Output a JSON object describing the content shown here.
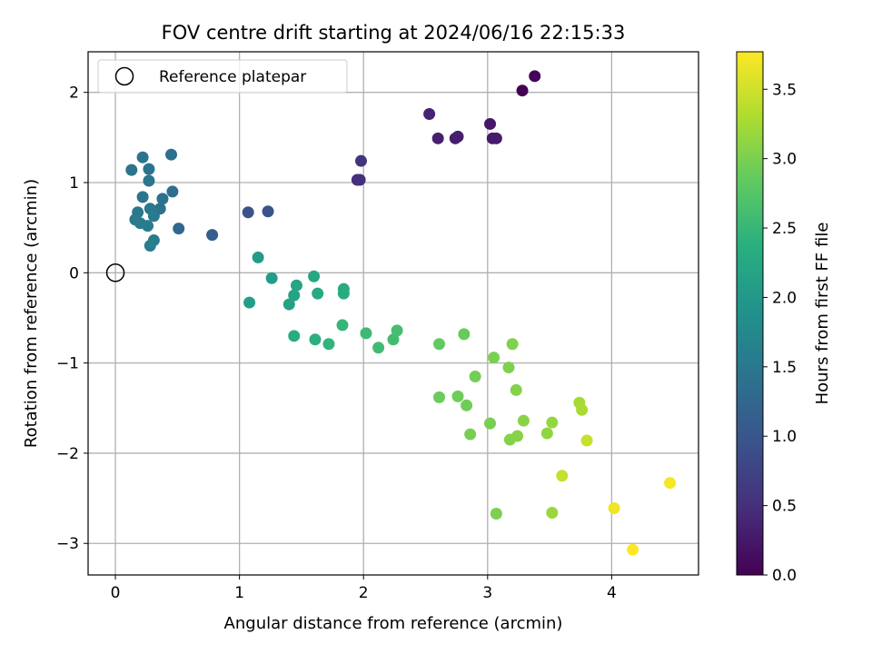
{
  "chart_data": {
    "type": "scatter",
    "title": "FOV centre drift starting at 2024/06/16 22:15:33",
    "xlabel": "Angular distance from reference (arcmin)",
    "ylabel": "Rotation from reference (arcmin)",
    "xlim": [
      -0.22,
      4.7
    ],
    "ylim": [
      -3.35,
      2.45
    ],
    "xticks": [
      0,
      1,
      2,
      3,
      4
    ],
    "xtick_labels": [
      "0",
      "1",
      "2",
      "3",
      "4"
    ],
    "yticks": [
      -3,
      -2,
      -1,
      0,
      1,
      2
    ],
    "ytick_labels": [
      "−3",
      "−2",
      "−1",
      "0",
      "1",
      "2"
    ],
    "grid": true,
    "legend": {
      "placement": "top-left",
      "entries": [
        "Reference platepar"
      ]
    },
    "reference_point": {
      "x": 0,
      "y": 0,
      "label": "Reference platepar"
    },
    "colorbar": {
      "label": "Hours from first FF file",
      "colormap": "viridis",
      "range": [
        0,
        3.77
      ],
      "ticks": [
        0.0,
        0.5,
        1.0,
        1.5,
        2.0,
        2.5,
        3.0,
        3.5
      ],
      "tick_labels": [
        "0.0",
        "0.5",
        "1.0",
        "1.5",
        "2.0",
        "2.5",
        "3.0",
        "3.5"
      ]
    },
    "points": [
      {
        "x": 3.28,
        "y": 2.02,
        "c": 0.0
      },
      {
        "x": 3.38,
        "y": 2.18,
        "c": 0.05
      },
      {
        "x": 3.02,
        "y": 1.65,
        "c": 0.25
      },
      {
        "x": 3.04,
        "y": 1.49,
        "c": 0.28
      },
      {
        "x": 3.07,
        "y": 1.49,
        "c": 0.3
      },
      {
        "x": 2.74,
        "y": 1.49,
        "c": 0.3
      },
      {
        "x": 2.76,
        "y": 1.51,
        "c": 0.32
      },
      {
        "x": 2.6,
        "y": 1.49,
        "c": 0.33
      },
      {
        "x": 2.53,
        "y": 1.76,
        "c": 0.38
      },
      {
        "x": 1.95,
        "y": 1.03,
        "c": 0.48
      },
      {
        "x": 1.97,
        "y": 1.03,
        "c": 0.5
      },
      {
        "x": 1.98,
        "y": 1.24,
        "c": 0.55
      },
      {
        "x": 1.07,
        "y": 0.67,
        "c": 0.95
      },
      {
        "x": 1.23,
        "y": 0.68,
        "c": 0.97
      },
      {
        "x": 0.78,
        "y": 0.42,
        "c": 1.12
      },
      {
        "x": 0.51,
        "y": 0.49,
        "c": 1.28
      },
      {
        "x": 0.46,
        "y": 0.9,
        "c": 1.35
      },
      {
        "x": 0.45,
        "y": 1.31,
        "c": 1.38
      },
      {
        "x": 0.38,
        "y": 0.82,
        "c": 1.4
      },
      {
        "x": 0.36,
        "y": 0.71,
        "c": 1.42
      },
      {
        "x": 0.22,
        "y": 1.28,
        "c": 1.43
      },
      {
        "x": 0.13,
        "y": 1.14,
        "c": 1.44
      },
      {
        "x": 0.27,
        "y": 1.15,
        "c": 1.45
      },
      {
        "x": 0.27,
        "y": 1.02,
        "c": 1.46
      },
      {
        "x": 0.22,
        "y": 0.84,
        "c": 1.48
      },
      {
        "x": 0.28,
        "y": 0.71,
        "c": 1.5
      },
      {
        "x": 0.18,
        "y": 0.67,
        "c": 1.5
      },
      {
        "x": 0.31,
        "y": 0.63,
        "c": 1.52
      },
      {
        "x": 0.16,
        "y": 0.59,
        "c": 1.53
      },
      {
        "x": 0.2,
        "y": 0.55,
        "c": 1.55
      },
      {
        "x": 0.26,
        "y": 0.52,
        "c": 1.56
      },
      {
        "x": 0.31,
        "y": 0.36,
        "c": 1.58
      },
      {
        "x": 0.28,
        "y": 0.3,
        "c": 1.6
      },
      {
        "x": 1.15,
        "y": 0.17,
        "c": 2.05
      },
      {
        "x": 1.26,
        "y": -0.06,
        "c": 2.08
      },
      {
        "x": 1.08,
        "y": -0.33,
        "c": 2.1
      },
      {
        "x": 1.4,
        "y": -0.35,
        "c": 2.15
      },
      {
        "x": 1.44,
        "y": -0.25,
        "c": 2.18
      },
      {
        "x": 1.46,
        "y": -0.14,
        "c": 2.2
      },
      {
        "x": 1.6,
        "y": -0.04,
        "c": 2.25
      },
      {
        "x": 1.63,
        "y": -0.23,
        "c": 2.28
      },
      {
        "x": 1.84,
        "y": -0.18,
        "c": 2.3
      },
      {
        "x": 1.84,
        "y": -0.23,
        "c": 2.32
      },
      {
        "x": 1.44,
        "y": -0.7,
        "c": 2.33
      },
      {
        "x": 1.61,
        "y": -0.74,
        "c": 2.38
      },
      {
        "x": 1.72,
        "y": -0.79,
        "c": 2.45
      },
      {
        "x": 1.83,
        "y": -0.58,
        "c": 2.48
      },
      {
        "x": 2.02,
        "y": -0.67,
        "c": 2.55
      },
      {
        "x": 2.12,
        "y": -0.83,
        "c": 2.58
      },
      {
        "x": 2.24,
        "y": -0.74,
        "c": 2.6
      },
      {
        "x": 2.27,
        "y": -0.64,
        "c": 2.62
      },
      {
        "x": 2.61,
        "y": -0.79,
        "c": 2.85
      },
      {
        "x": 2.81,
        "y": -0.68,
        "c": 2.88
      },
      {
        "x": 2.61,
        "y": -1.38,
        "c": 2.9
      },
      {
        "x": 2.76,
        "y": -1.37,
        "c": 2.92
      },
      {
        "x": 2.83,
        "y": -1.47,
        "c": 2.93
      },
      {
        "x": 2.9,
        "y": -1.15,
        "c": 2.95
      },
      {
        "x": 2.86,
        "y": -1.79,
        "c": 2.97
      },
      {
        "x": 3.02,
        "y": -1.67,
        "c": 2.98
      },
      {
        "x": 3.05,
        "y": -0.94,
        "c": 3.0
      },
      {
        "x": 3.07,
        "y": -2.67,
        "c": 3.0
      },
      {
        "x": 3.17,
        "y": -1.05,
        "c": 3.02
      },
      {
        "x": 3.2,
        "y": -0.79,
        "c": 3.03
      },
      {
        "x": 3.23,
        "y": -1.3,
        "c": 3.05
      },
      {
        "x": 3.18,
        "y": -1.85,
        "c": 3.05
      },
      {
        "x": 3.24,
        "y": -1.81,
        "c": 3.07
      },
      {
        "x": 3.29,
        "y": -1.64,
        "c": 3.08
      },
      {
        "x": 3.48,
        "y": -1.78,
        "c": 3.12
      },
      {
        "x": 3.52,
        "y": -1.66,
        "c": 3.15
      },
      {
        "x": 3.52,
        "y": -2.66,
        "c": 3.18
      },
      {
        "x": 3.74,
        "y": -1.44,
        "c": 3.25
      },
      {
        "x": 3.76,
        "y": -1.52,
        "c": 3.28
      },
      {
        "x": 3.8,
        "y": -1.86,
        "c": 3.45
      },
      {
        "x": 3.6,
        "y": -2.25,
        "c": 3.45
      },
      {
        "x": 4.02,
        "y": -2.61,
        "c": 3.7
      },
      {
        "x": 4.47,
        "y": -2.33,
        "c": 3.72
      },
      {
        "x": 4.17,
        "y": -3.07,
        "c": 3.77
      }
    ]
  }
}
